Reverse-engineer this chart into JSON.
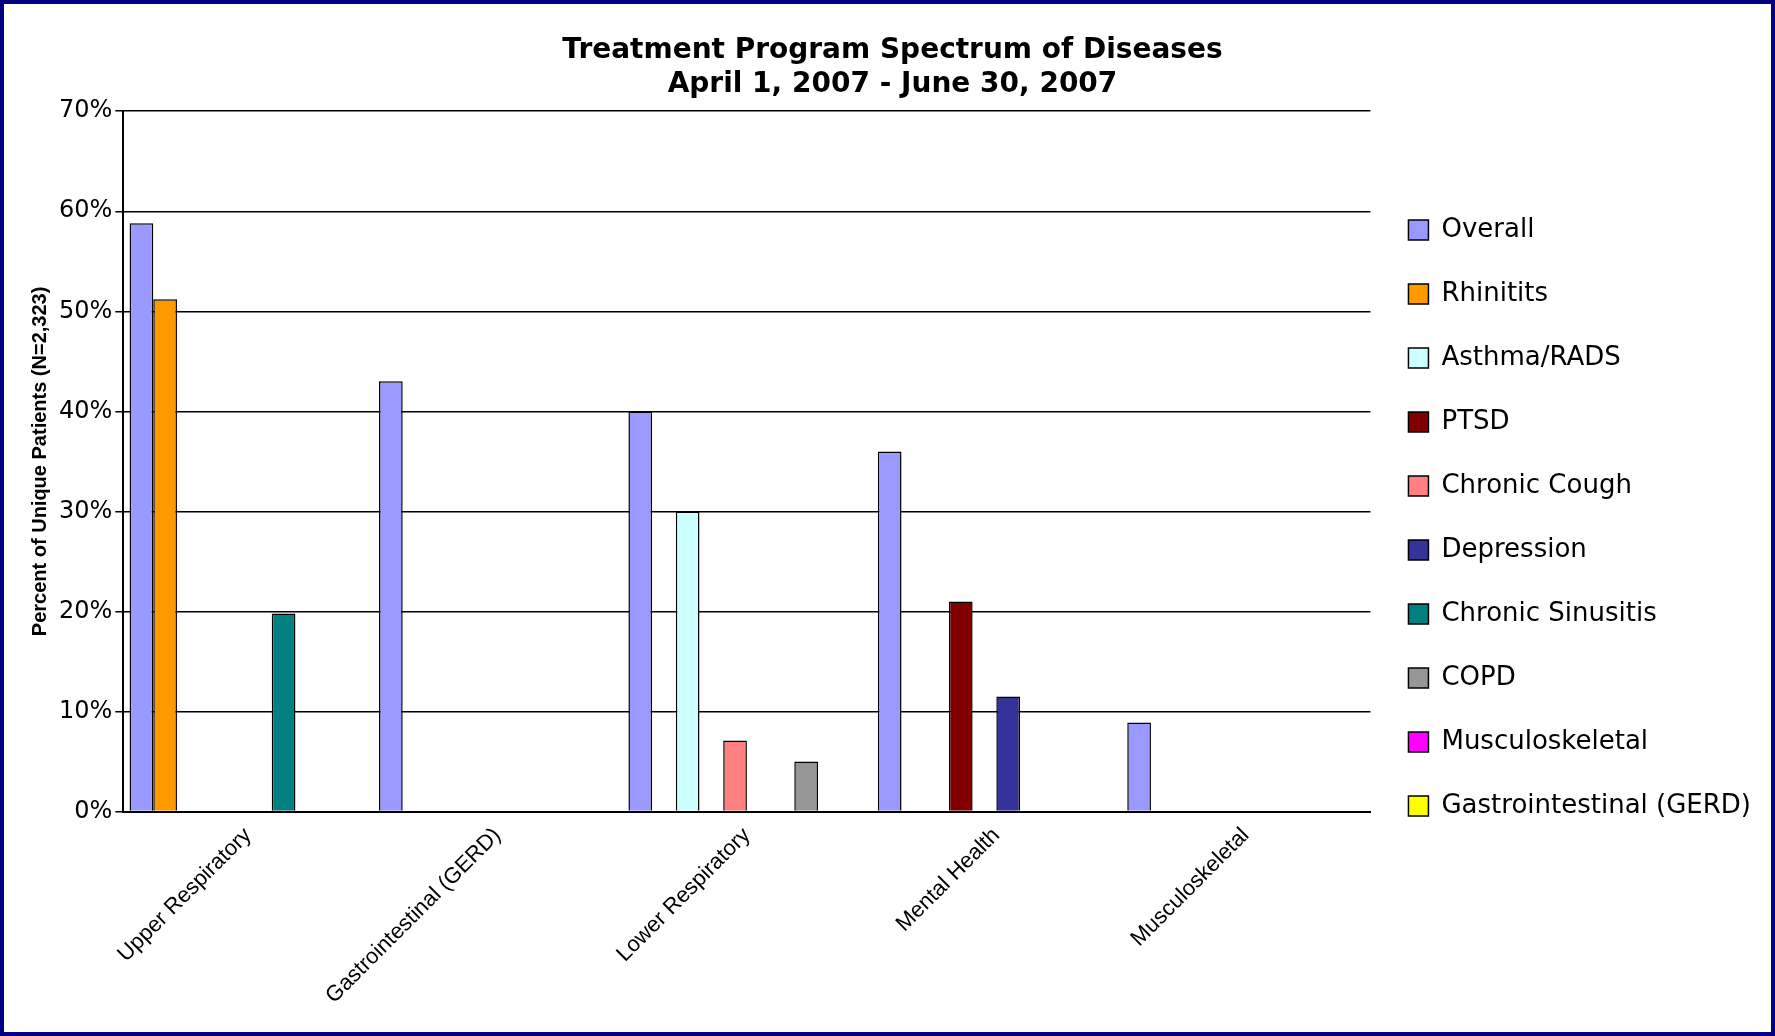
{
  "chart_data": {
    "type": "bar",
    "title": [
      "Treatment Program Spectrum of Diseases",
      "April 1, 2007 - June 30, 2007"
    ],
    "ylabel": "Percent of Unique Patients (N=2,323)",
    "categories": [
      "Upper Respiratory",
      "Gastrointestinal (GERD)",
      "Lower Respiratory",
      "Mental Health",
      "Musculoskeletal"
    ],
    "series": [
      {
        "name": "Overall",
        "color": "#9999ff",
        "values": [
          58.8,
          43,
          40,
          36,
          8.9
        ]
      },
      {
        "name": "Rhinitits",
        "color": "#ff9900",
        "values": [
          51.2,
          null,
          null,
          null,
          null
        ]
      },
      {
        "name": "Asthma/RADS",
        "color": "#ccffff",
        "values": [
          null,
          null,
          30,
          null,
          null
        ]
      },
      {
        "name": "PTSD",
        "color": "#800000",
        "values": [
          null,
          null,
          null,
          21,
          null
        ]
      },
      {
        "name": "Chronic Cough",
        "color": "#ff8080",
        "values": [
          null,
          null,
          7.1,
          null,
          null
        ]
      },
      {
        "name": "Depression",
        "color": "#333399",
        "values": [
          null,
          null,
          null,
          11.5,
          null
        ]
      },
      {
        "name": "Chronic Sinusitis",
        "color": "#008080",
        "values": [
          19.8,
          null,
          null,
          null,
          null
        ]
      },
      {
        "name": "COPD",
        "color": "#969696",
        "values": [
          null,
          null,
          5,
          null,
          null
        ]
      },
      {
        "name": "Musculoskeletal",
        "color": "#ff00ff",
        "values": [
          null,
          null,
          null,
          null,
          null
        ]
      },
      {
        "name": "Gastrointestinal (GERD)",
        "color": "#ffff00",
        "values": [
          null,
          null,
          null,
          null,
          null
        ]
      }
    ],
    "ylim": [
      0,
      70
    ],
    "yticks": [
      {
        "value": 0,
        "label": "0%"
      },
      {
        "value": 10,
        "label": "10%"
      },
      {
        "value": 20,
        "label": "20%"
      },
      {
        "value": 30,
        "label": "30%"
      },
      {
        "value": 40,
        "label": "40%"
      },
      {
        "value": 50,
        "label": "50%"
      },
      {
        "value": 60,
        "label": "60%"
      },
      {
        "value": 70,
        "label": "70%"
      }
    ],
    "grid": "y",
    "legend": "right"
  }
}
